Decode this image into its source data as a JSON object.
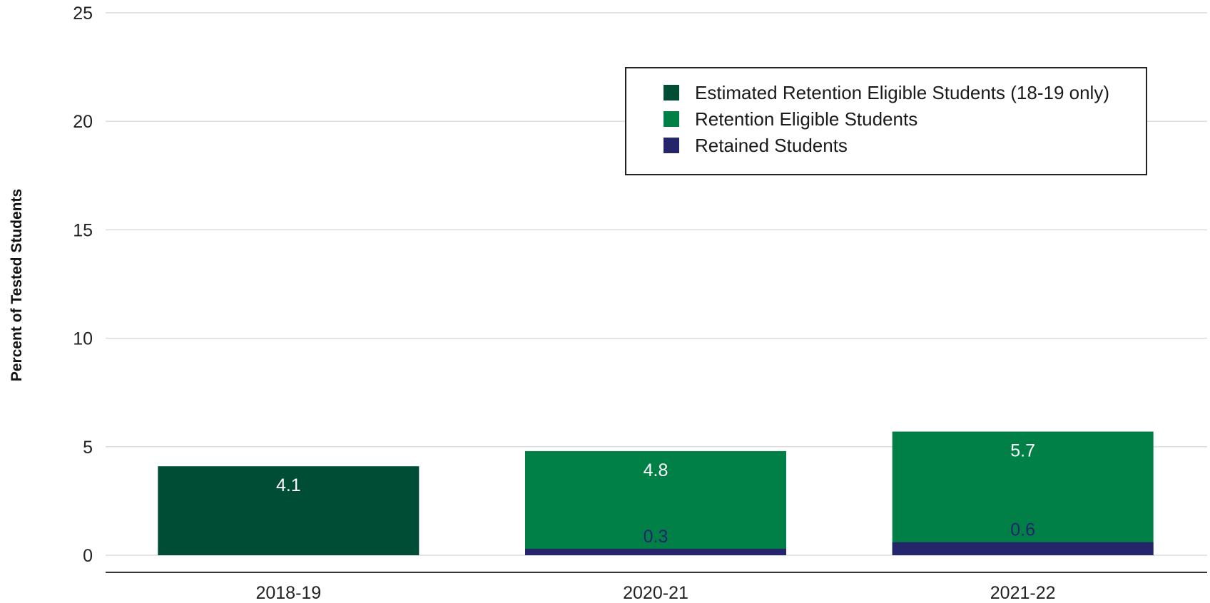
{
  "chart_data": {
    "type": "bar",
    "stacked": true,
    "categories": [
      "2018-19",
      "2020-21",
      "2021-22"
    ],
    "ylabel": "Percent of Tested Students",
    "xlabel": "",
    "ylim": [
      0,
      25
    ],
    "yticks": [
      "0",
      "5",
      "10",
      "15",
      "20",
      "25"
    ],
    "grid": true,
    "legend_position": "top-right",
    "series": [
      {
        "name": "Estimated Retention Eligible Students (18-19 only)",
        "values": [
          4.1,
          null,
          null
        ],
        "color": "#004d36",
        "labels": [
          "4.1",
          "",
          ""
        ],
        "label_color": "#ffffff"
      },
      {
        "name": "Retention Eligible Students",
        "values": [
          null,
          4.8,
          5.7
        ],
        "color": "#008046",
        "labels": [
          "",
          "4.8",
          "5.7"
        ],
        "label_color": "#ffffff"
      },
      {
        "name": "Retained Students",
        "values": [
          null,
          0.3,
          0.6
        ],
        "color": "#25256b",
        "labels": [
          "",
          "0.3",
          "0.6"
        ],
        "label_color": "#25256b"
      }
    ]
  }
}
